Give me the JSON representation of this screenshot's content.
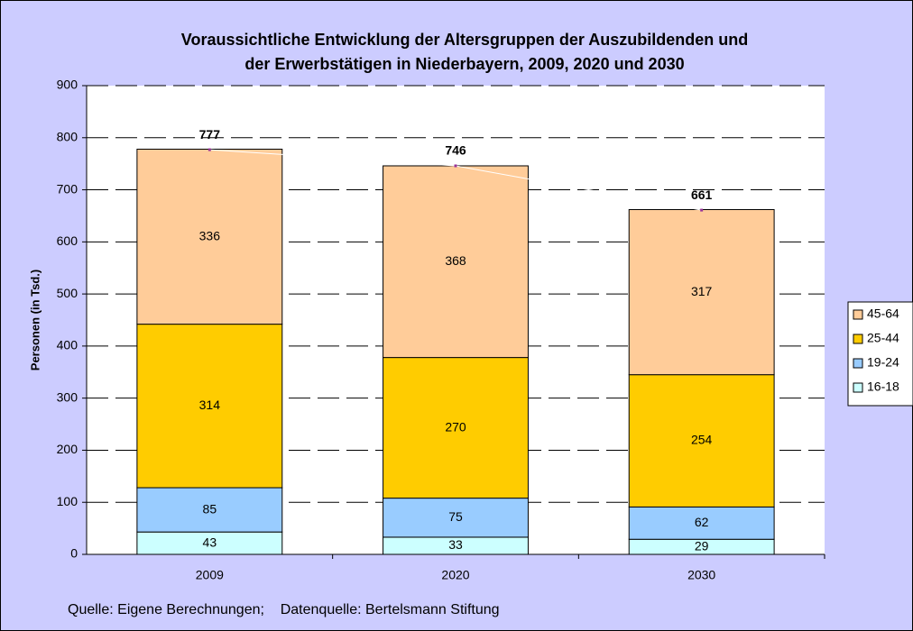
{
  "chart_data": {
    "type": "stacked_bar",
    "title": [
      "Voraussichtliche Entwicklung der Altersgruppen der Auszubildenden und",
      "der Erwerbstätigen in Niederbayern, 2009, 2020 und 2030"
    ],
    "y_label": "Personen (in Tsd.)",
    "source": "Quelle: Eigene Berechnungen;    Datenquelle: Bertelsmann Stiftung",
    "categories": [
      "2009",
      "2020",
      "2030"
    ],
    "series": [
      {
        "name": "16-18",
        "color": "#ccffff",
        "values": [
          43,
          33,
          29
        ]
      },
      {
        "name": "19-24",
        "color": "#99ccff",
        "values": [
          85,
          75,
          62
        ]
      },
      {
        "name": "25-44",
        "color": "#ffcc00",
        "values": [
          314,
          270,
          254
        ]
      },
      {
        "name": "45-64",
        "color": "#ffcc99",
        "values": [
          336,
          368,
          317
        ]
      }
    ],
    "totals": [
      777,
      746,
      661
    ],
    "ylim": [
      0,
      900
    ],
    "yticks": [
      0,
      100,
      200,
      300,
      400,
      500,
      600,
      700,
      800,
      900
    ],
    "grid": true,
    "legend": "right"
  }
}
